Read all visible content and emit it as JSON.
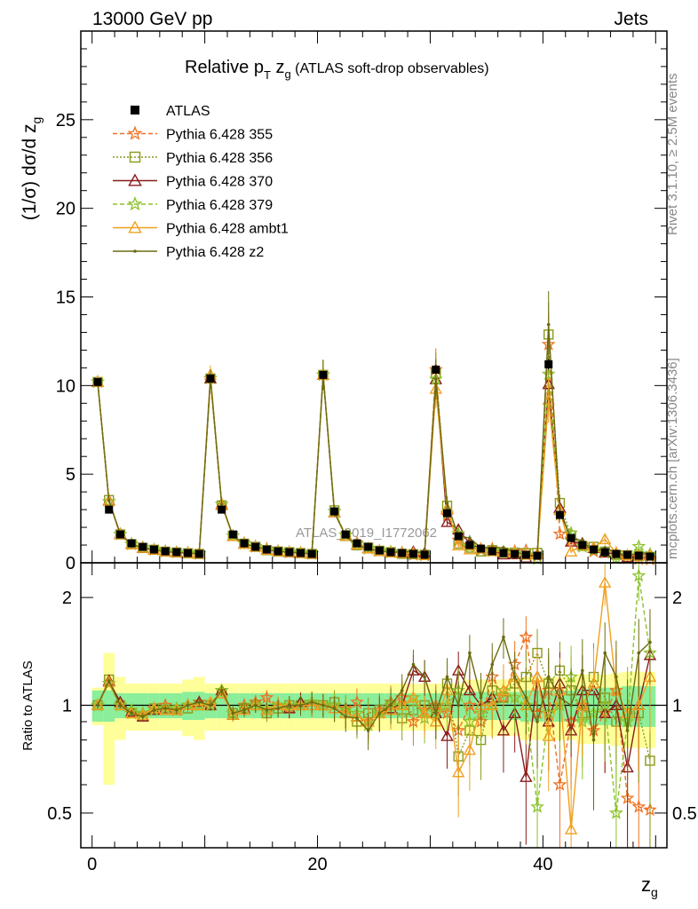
{
  "header": {
    "left": "13000 GeV pp",
    "right": "Jets"
  },
  "side_labels": {
    "rivet": "Rivet 3.1.10, ≥ 2.5M events",
    "mcplots": "mcplots.cern.ch [arXiv:1306.3436]"
  },
  "chart_data": {
    "type": "line",
    "title_main": "Relative p",
    "title_sub_T": "T",
    "title_mid": " z",
    "title_sub_g": "g",
    "title_rest": " (ATLAS soft-drop observables)",
    "ylabel": "(1/σ) dσ/d z",
    "ylabel_sub": "g",
    "xlabel": "z",
    "xlabel_sub": "g",
    "watermark": "ATLAS_2019_I1772062",
    "ratio_ylabel": "Ratio to ATLAS",
    "xlim": [
      -1,
      51
    ],
    "ylim": [
      0,
      30
    ],
    "ratio_ylim": [
      0.4,
      2.5
    ],
    "xticks": [
      0,
      20,
      40
    ],
    "yticks": [
      0,
      5,
      10,
      15,
      20,
      25
    ],
    "ratio_yticks": [
      0.5,
      1,
      2
    ],
    "x_bins": [
      0.5,
      1.5,
      2.5,
      3.5,
      4.5,
      5.5,
      6.5,
      7.5,
      8.5,
      9.5,
      10.5,
      11.5,
      12.5,
      13.5,
      14.5,
      15.5,
      16.5,
      17.5,
      18.5,
      19.5,
      20.5,
      21.5,
      22.5,
      23.5,
      24.5,
      25.5,
      26.5,
      27.5,
      28.5,
      29.5,
      30.5,
      31.5,
      32.5,
      33.5,
      34.5,
      35.5,
      36.5,
      37.5,
      38.5,
      39.5,
      40.5,
      41.5,
      42.5,
      43.5,
      44.5,
      45.5,
      46.5,
      47.5,
      48.5,
      49.5
    ],
    "atlas": {
      "name": "ATLAS",
      "values": [
        10.2,
        3.0,
        1.6,
        1.1,
        0.9,
        0.75,
        0.65,
        0.6,
        0.55,
        0.5,
        10.4,
        3.0,
        1.6,
        1.1,
        0.9,
        0.75,
        0.65,
        0.6,
        0.55,
        0.5,
        10.6,
        2.9,
        1.6,
        1.1,
        0.9,
        0.7,
        0.6,
        0.55,
        0.5,
        0.45,
        10.9,
        2.8,
        1.5,
        1.0,
        0.8,
        0.65,
        0.55,
        0.5,
        0.45,
        0.4,
        11.2,
        2.7,
        1.4,
        1.0,
        0.75,
        0.6,
        0.5,
        0.45,
        0.4,
        0.35
      ],
      "errors": [
        0.2,
        0.12,
        0.08,
        0.06,
        0.05,
        0.05,
        0.05,
        0.05,
        0.05,
        0.05,
        0.2,
        0.12,
        0.08,
        0.06,
        0.05,
        0.05,
        0.05,
        0.05,
        0.05,
        0.05,
        0.2,
        0.12,
        0.08,
        0.06,
        0.05,
        0.05,
        0.05,
        0.05,
        0.05,
        0.05,
        0.25,
        0.15,
        0.1,
        0.08,
        0.07,
        0.06,
        0.06,
        0.06,
        0.06,
        0.06,
        0.3,
        0.2,
        0.15,
        0.12,
        0.1,
        0.1,
        0.1,
        0.1,
        0.1,
        0.1
      ]
    },
    "ratio_band_stat": [
      0.1,
      0.1,
      0.08,
      0.08,
      0.08,
      0.08,
      0.08,
      0.08,
      0.09,
      0.09,
      0.08,
      0.08,
      0.08,
      0.08,
      0.08,
      0.08,
      0.08,
      0.08,
      0.08,
      0.08,
      0.08,
      0.08,
      0.08,
      0.08,
      0.08,
      0.08,
      0.08,
      0.08,
      0.08,
      0.08,
      0.08,
      0.08,
      0.08,
      0.09,
      0.09,
      0.09,
      0.09,
      0.09,
      0.1,
      0.1,
      0.1,
      0.1,
      0.1,
      0.11,
      0.12,
      0.12,
      0.12,
      0.13,
      0.13,
      0.13
    ],
    "ratio_band_total": [
      0.12,
      0.4,
      0.2,
      0.15,
      0.15,
      0.15,
      0.15,
      0.15,
      0.18,
      0.2,
      0.15,
      0.15,
      0.15,
      0.15,
      0.15,
      0.15,
      0.15,
      0.15,
      0.15,
      0.15,
      0.15,
      0.15,
      0.15,
      0.15,
      0.15,
      0.15,
      0.15,
      0.15,
      0.15,
      0.15,
      0.15,
      0.15,
      0.15,
      0.18,
      0.18,
      0.18,
      0.18,
      0.18,
      0.2,
      0.2,
      0.2,
      0.2,
      0.2,
      0.22,
      0.22,
      0.22,
      0.23,
      0.24,
      0.24,
      0.24
    ],
    "series": [
      {
        "name": "Pythia 6.428 355",
        "color": "#f07020",
        "marker": "star",
        "dash": "5,3",
        "ratio": [
          1.0,
          1.15,
          1.0,
          0.95,
          0.95,
          0.98,
          1.0,
          0.97,
          1.0,
          1.02,
          1.0,
          1.1,
          0.95,
          1.0,
          1.02,
          1.05,
          1.0,
          0.98,
          1.0,
          1.02,
          1.0,
          1.0,
          0.98,
          1.02,
          0.9,
          0.97,
          1.02,
          1.05,
          0.9,
          0.97,
          1.0,
          0.95,
          0.85,
          1.0,
          0.9,
          1.2,
          1.05,
          1.3,
          1.55,
          0.95,
          1.1,
          0.6,
          0.9,
          1.0,
          0.85,
          0.95,
          1.1,
          0.55,
          0.52,
          0.51
        ]
      },
      {
        "name": "Pythia 6.428 356",
        "color": "#8a9a1a",
        "marker": "square",
        "dash": "2,2",
        "ratio": [
          1.0,
          1.18,
          1.0,
          0.95,
          0.93,
          0.98,
          0.97,
          0.97,
          0.98,
          1.0,
          1.0,
          1.08,
          0.95,
          0.98,
          1.0,
          0.95,
          0.98,
          1.0,
          1.0,
          1.0,
          1.0,
          1.02,
          0.95,
          0.9,
          0.95,
          0.97,
          1.0,
          0.92,
          0.97,
          1.0,
          0.98,
          1.15,
          0.72,
          0.85,
          0.8,
          1.1,
          1.05,
          1.15,
          1.2,
          1.4,
          1.15,
          1.25,
          1.1,
          0.95,
          1.2,
          1.05,
          0.9,
          0.95,
          0.95,
          0.7
        ]
      },
      {
        "name": "Pythia 6.428 370",
        "color": "#8b1a1a",
        "marker": "triangle",
        "dash": "",
        "ratio": [
          1.0,
          1.17,
          1.02,
          0.96,
          0.93,
          0.97,
          0.98,
          0.97,
          1.0,
          1.02,
          1.0,
          1.1,
          0.94,
          0.98,
          1.0,
          0.97,
          1.0,
          0.98,
          1.02,
          1.0,
          1.0,
          0.98,
          0.95,
          0.93,
          0.9,
          0.95,
          0.98,
          1.0,
          1.25,
          1.2,
          0.95,
          0.82,
          1.25,
          1.1,
          1.0,
          1.05,
          0.85,
          0.95,
          0.63,
          1.2,
          0.9,
          1.15,
          0.85,
          1.1,
          1.1,
          0.95,
          1.0,
          0.67,
          1.0,
          1.38
        ]
      },
      {
        "name": "Pythia 6.428 379",
        "color": "#8ac22a",
        "marker": "star",
        "dash": "5,3",
        "ratio": [
          1.0,
          1.15,
          1.0,
          0.97,
          0.95,
          0.97,
          0.98,
          0.98,
          1.0,
          1.0,
          1.0,
          1.1,
          0.95,
          0.98,
          1.0,
          0.98,
          1.0,
          1.0,
          1.0,
          1.02,
          1.0,
          1.0,
          0.97,
          0.95,
          0.88,
          0.95,
          1.0,
          1.0,
          1.05,
          0.92,
          0.95,
          1.0,
          1.1,
          0.9,
          0.95,
          1.0,
          1.1,
          1.05,
          1.0,
          0.52,
          0.95,
          1.0,
          1.2,
          0.9,
          0.95,
          1.0,
          0.5,
          0.9,
          2.3,
          1.4
        ]
      },
      {
        "name": "Pythia 6.428 ambt1",
        "color": "#f0a020",
        "marker": "triangle",
        "dash": "",
        "ratio": [
          1.0,
          1.16,
          1.0,
          0.95,
          0.94,
          0.98,
          0.97,
          0.97,
          1.0,
          1.0,
          1.02,
          1.08,
          0.94,
          0.97,
          1.0,
          0.97,
          1.0,
          1.0,
          1.0,
          1.0,
          1.0,
          0.98,
          0.95,
          0.93,
          0.9,
          0.95,
          0.97,
          1.0,
          1.05,
          0.95,
          0.9,
          1.1,
          0.65,
          0.75,
          1.0,
          1.0,
          1.1,
          1.2,
          1.0,
          1.2,
          0.82,
          1.1,
          0.45,
          1.0,
          1.15,
          2.2,
          1.1,
          0.95,
          1.0,
          1.2
        ]
      },
      {
        "name": "Pythia 6.428 z2",
        "color": "#6b6b10",
        "marker": "dot",
        "dash": "",
        "ratio": [
          1.0,
          1.17,
          1.0,
          0.95,
          0.93,
          0.97,
          0.98,
          0.97,
          1.0,
          1.02,
          1.0,
          1.1,
          0.95,
          0.97,
          1.0,
          0.97,
          0.98,
          1.0,
          1.0,
          1.02,
          1.0,
          0.98,
          0.93,
          0.92,
          0.85,
          0.95,
          1.0,
          1.1,
          1.3,
          1.2,
          0.95,
          1.2,
          1.0,
          1.4,
          1.05,
          1.3,
          1.55,
          1.2,
          1.05,
          0.9,
          1.2,
          1.05,
          1.0,
          1.25,
          0.8,
          1.4,
          1.2,
          0.85,
          1.4,
          1.5
        ]
      }
    ]
  }
}
